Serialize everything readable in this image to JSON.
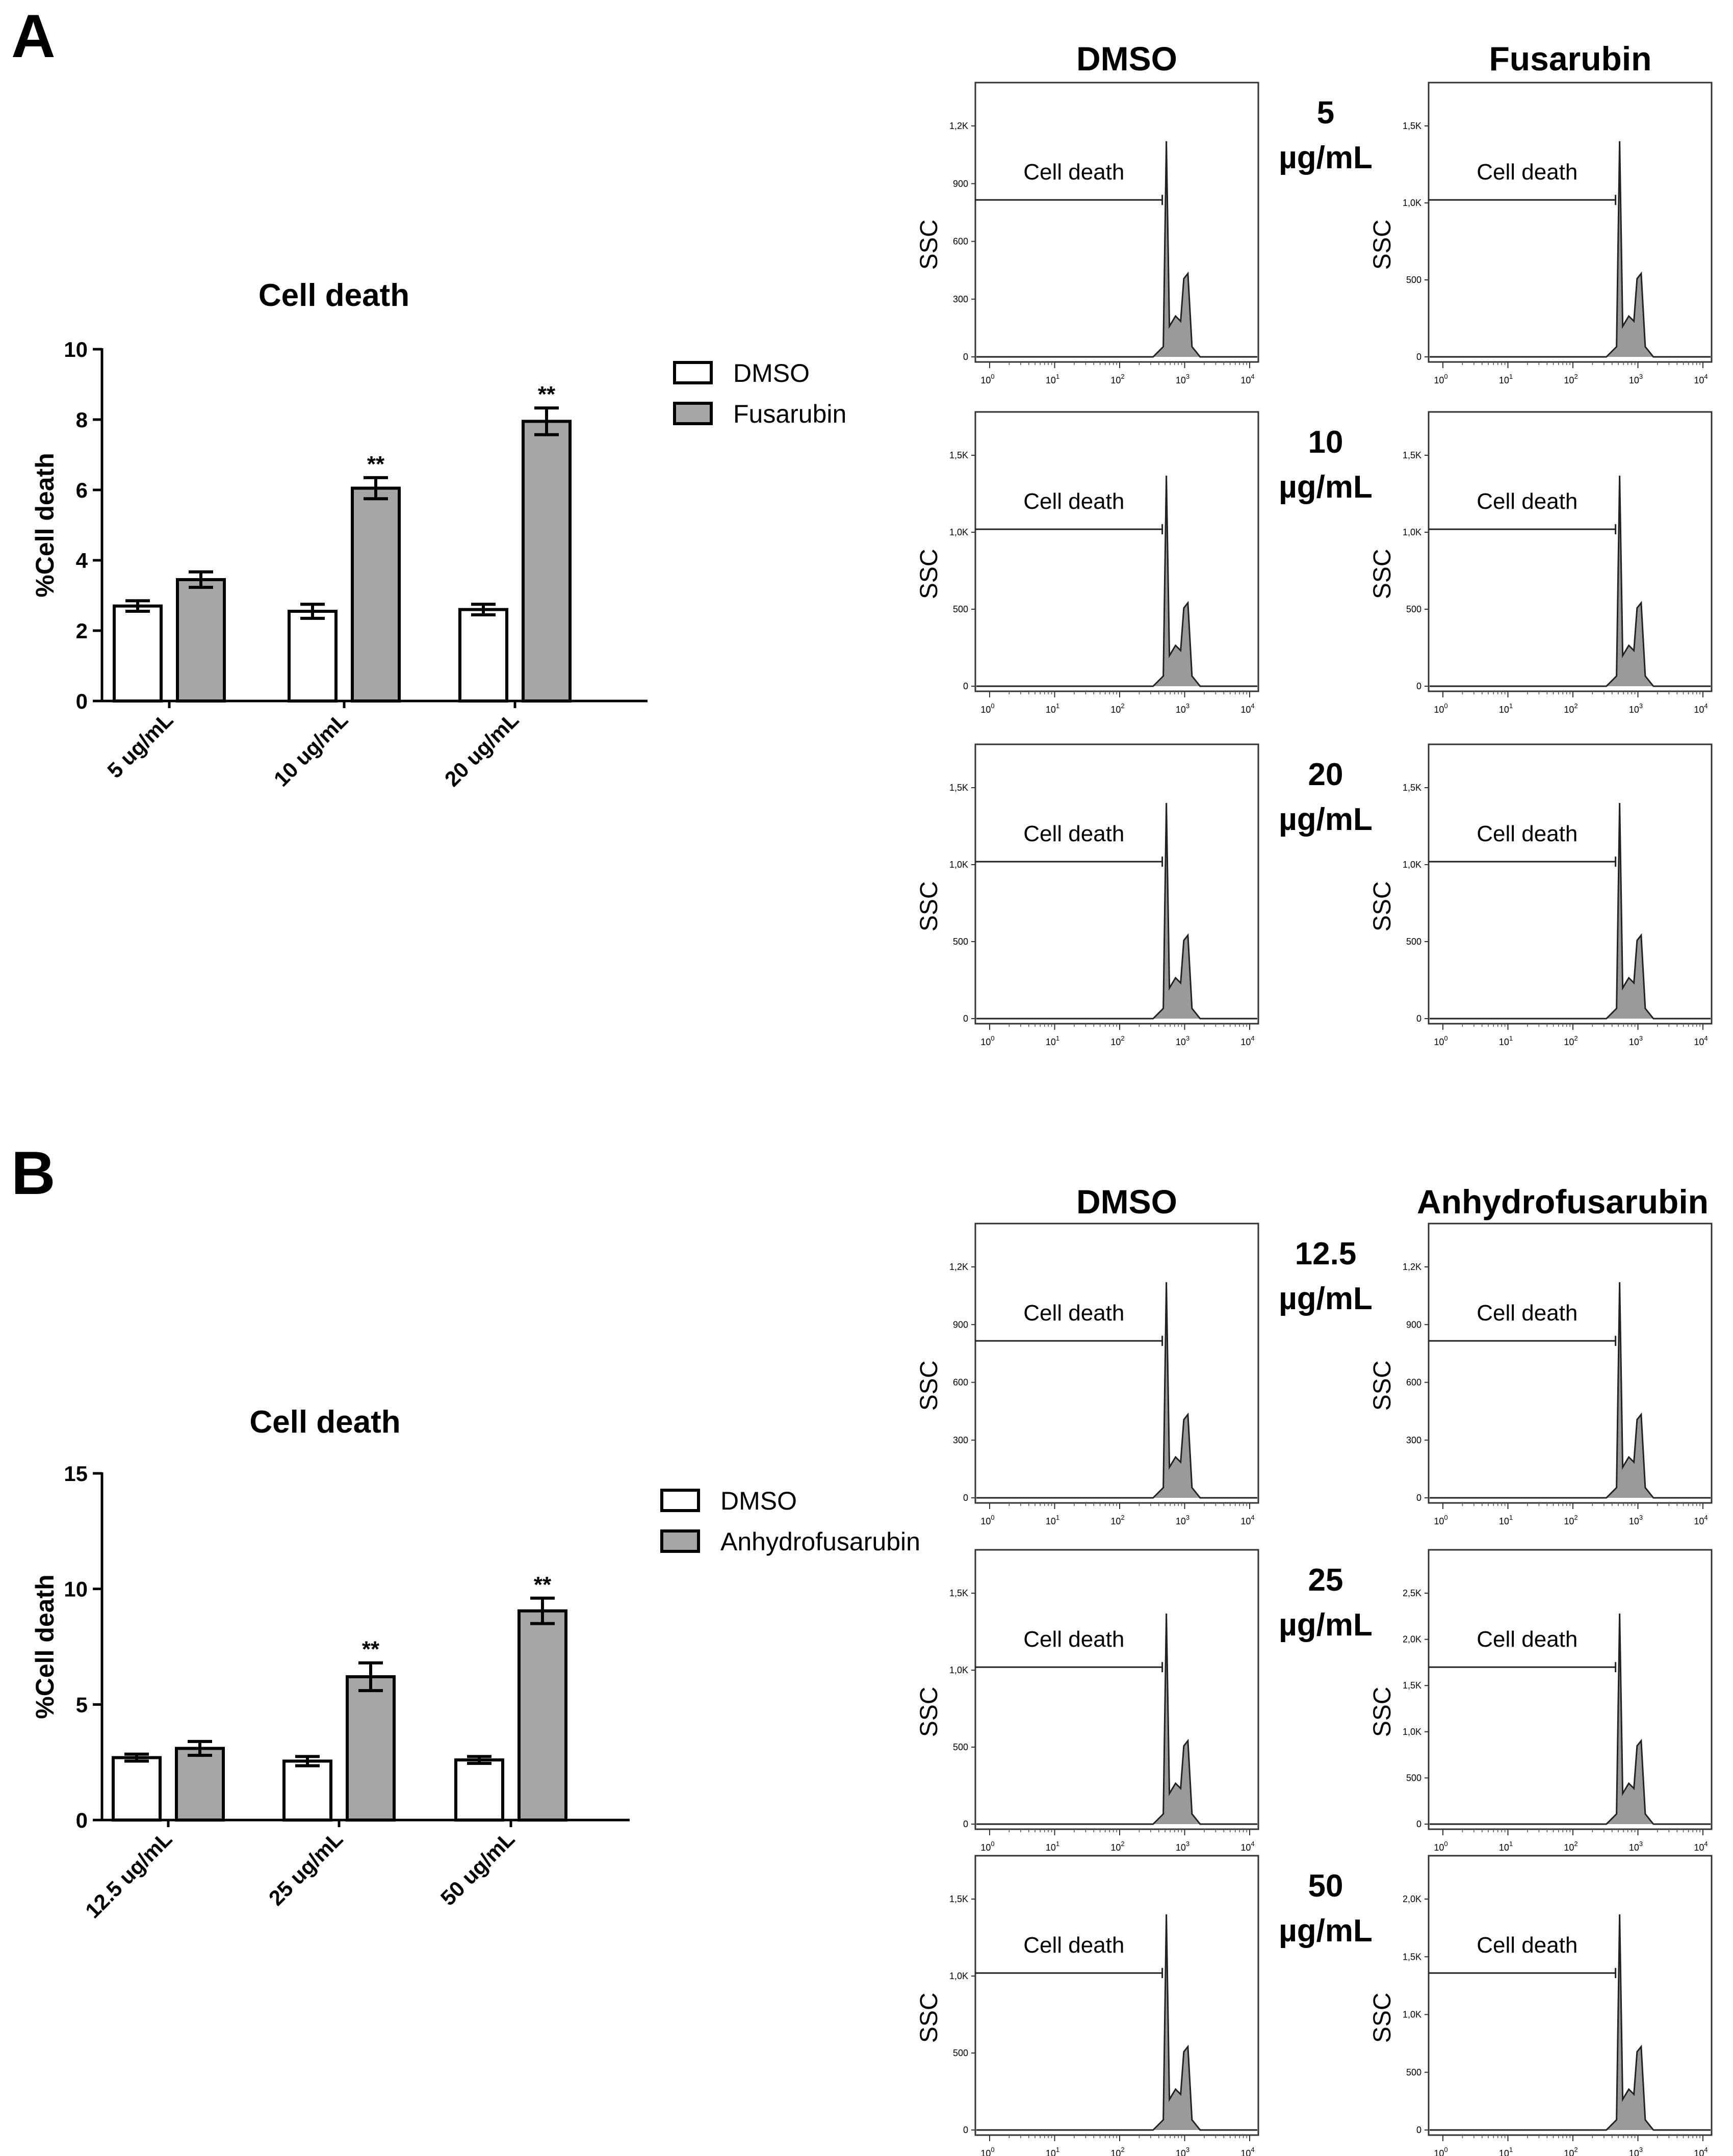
{
  "panels": [
    {
      "letter": "A",
      "chart_data": {
        "type": "bar",
        "title": "Cell death",
        "ylabel": "%Cell death",
        "xlabel": "",
        "ylim": [
          0,
          10
        ],
        "yticks": [
          "0",
          "2",
          "4",
          "6",
          "8",
          "10"
        ],
        "categories": [
          "5 ug/mL",
          "10 ug/mL",
          "20 ug/mL"
        ],
        "series": [
          {
            "name": "DMSO",
            "color": "#ffffff",
            "values": [
              2.7,
              2.55,
              2.6
            ],
            "errors": [
              0.15,
              0.2,
              0.15
            ],
            "annotations": [
              "",
              "",
              ""
            ]
          },
          {
            "name": "Fusarubin",
            "color": "#a6a6a6",
            "values": [
              3.45,
              6.05,
              7.95
            ],
            "errors": [
              0.22,
              0.3,
              0.38
            ],
            "annotations": [
              "",
              "**",
              "**"
            ]
          }
        ],
        "legend_position": "right"
      },
      "flow": {
        "col_headers": [
          "DMSO",
          "Fusarubin"
        ],
        "rows": [
          {
            "conc_value": "5",
            "conc_unit": "µg/mL",
            "left": {
              "ylabel": "SSC",
              "gate": "Cell death",
              "yticks": [
                "0",
                "300",
                "600",
                "900",
                "1,2K"
              ]
            },
            "right": {
              "ylabel": "SSC",
              "gate": "Cell death",
              "yticks": [
                "0",
                "500",
                "1,0K",
                "1,5K"
              ]
            }
          },
          {
            "conc_value": "10",
            "conc_unit": "µg/mL",
            "left": {
              "ylabel": "SSC",
              "gate": "Cell death",
              "yticks": [
                "0",
                "500",
                "1,0K",
                "1,5K"
              ]
            },
            "right": {
              "ylabel": "SSC",
              "gate": "Cell death",
              "yticks": [
                "0",
                "500",
                "1,0K",
                "1,5K"
              ]
            }
          },
          {
            "conc_value": "20",
            "conc_unit": "µg/mL",
            "left": {
              "ylabel": "SSC",
              "gate": "Cell death",
              "yticks": [
                "0",
                "500",
                "1,0K",
                "1,5K"
              ]
            },
            "right": {
              "ylabel": "SSC",
              "gate": "Cell death",
              "yticks": [
                "0",
                "500",
                "1,0K",
                "1,5K"
              ]
            }
          }
        ]
      }
    },
    {
      "letter": "B",
      "chart_data": {
        "type": "bar",
        "title": "Cell death",
        "ylabel": "%Cell death",
        "xlabel": "",
        "ylim": [
          0,
          15
        ],
        "yticks": [
          "0",
          "5",
          "10",
          "15"
        ],
        "categories": [
          "12.5 ug/mL",
          "25 ug/mL",
          "50 ug/mL"
        ],
        "series": [
          {
            "name": "DMSO",
            "color": "#ffffff",
            "values": [
              2.7,
              2.55,
              2.6
            ],
            "errors": [
              0.15,
              0.2,
              0.15
            ],
            "annotations": [
              "",
              "",
              ""
            ]
          },
          {
            "name": "Anhydrofusarubin",
            "color": "#a6a6a6",
            "values": [
              3.1,
              6.2,
              9.05
            ],
            "errors": [
              0.3,
              0.6,
              0.55
            ],
            "annotations": [
              "",
              "**",
              "**"
            ]
          }
        ],
        "legend_position": "right"
      },
      "flow": {
        "col_headers": [
          "DMSO",
          "Anhydrofusarubin"
        ],
        "rows": [
          {
            "conc_value": "12.5",
            "conc_unit": "µg/mL",
            "left": {
              "ylabel": "SSC",
              "gate": "Cell death",
              "yticks": [
                "0",
                "300",
                "600",
                "900",
                "1,2K"
              ]
            },
            "right": {
              "ylabel": "SSC",
              "gate": "Cell death",
              "yticks": [
                "0",
                "300",
                "600",
                "900",
                "1,2K"
              ]
            }
          },
          {
            "conc_value": "25",
            "conc_unit": "µg/mL",
            "left": {
              "ylabel": "SSC",
              "gate": "Cell death",
              "yticks": [
                "0",
                "500",
                "1,0K",
                "1,5K"
              ]
            },
            "right": {
              "ylabel": "SSC",
              "gate": "Cell death",
              "yticks": [
                "0",
                "500",
                "1,0K",
                "1,5K",
                "2,0K",
                "2,5K"
              ]
            }
          },
          {
            "conc_value": "50",
            "conc_unit": "µg/mL",
            "left": {
              "ylabel": "SSC",
              "gate": "Cell death",
              "yticks": [
                "0",
                "500",
                "1,0K",
                "1,5K"
              ]
            },
            "right": {
              "ylabel": "SSC",
              "gate": "Cell death",
              "yticks": [
                "0",
                "500",
                "1,0K",
                "1,5K",
                "2,0K"
              ]
            }
          }
        ]
      }
    }
  ],
  "flow_x_axis": {
    "ticks": [
      {
        "base": "10",
        "exp": "0"
      },
      {
        "base": "10",
        "exp": "1"
      },
      {
        "base": "10",
        "exp": "2"
      },
      {
        "base": "10",
        "exp": "3"
      },
      {
        "base": "10",
        "exp": "4"
      }
    ]
  }
}
